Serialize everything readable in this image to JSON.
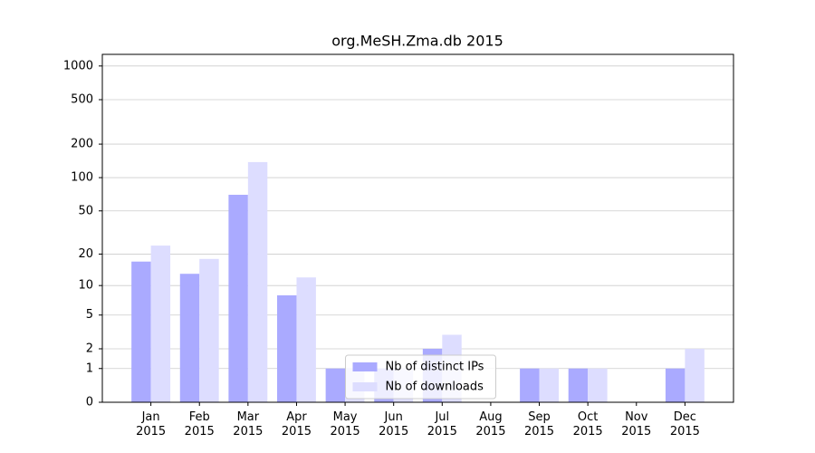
{
  "chart_data": {
    "type": "bar",
    "title": "org.MeSH.Zma.db 2015",
    "categories": [
      "Jan\n2015",
      "Feb\n2015",
      "Mar\n2015",
      "Apr\n2015",
      "May\n2015",
      "Jun\n2015",
      "Jul\n2015",
      "Aug\n2015",
      "Sep\n2015",
      "Oct\n2015",
      "Nov\n2015",
      "Dec\n2015"
    ],
    "series": [
      {
        "name": "Nb of distinct IPs",
        "color": "#aaaaff",
        "values": [
          17,
          13,
          70,
          8,
          1,
          1,
          2,
          0,
          1,
          1,
          0,
          1
        ]
      },
      {
        "name": "Nb of downloads",
        "color": "#ddddff",
        "values": [
          24,
          18,
          138,
          12,
          1,
          1,
          3,
          0,
          1,
          1,
          0,
          2
        ]
      }
    ],
    "scale": "log1p",
    "ylim": [
      0,
      1270
    ],
    "yticks": [
      0,
      1,
      2,
      5,
      10,
      20,
      50,
      100,
      200,
      500,
      1000
    ],
    "grid": true,
    "legend": "lower center"
  }
}
